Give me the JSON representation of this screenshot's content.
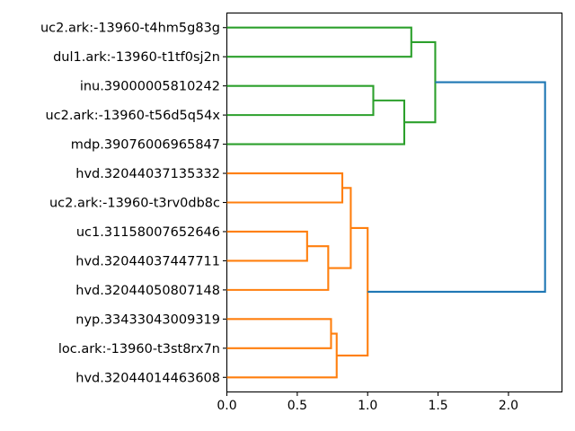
{
  "chart_data": {
    "type": "dendrogram",
    "orientation": "right",
    "title": "",
    "xlabel": "",
    "ylabel": "",
    "grid": false,
    "legend": null,
    "leaves": [
      "uc2.ark:-13960-t4hm5g83g",
      "dul1.ark:-13960-t1tf0sj2n",
      "inu.39000005810242",
      "uc2.ark:-13960-t56d5q54x",
      "mdp.39076006965847",
      "hvd.32044037135332",
      "uc2.ark:-13960-t3rv0db8c",
      "uc1.31158007652646",
      "hvd.32044037447711",
      "hvd.32044050807148",
      "nyp.33433043009319",
      "loc.ark:-13960-t3st8rx7n",
      "hvd.32044014463608"
    ],
    "merges": [
      {
        "id": "m-0",
        "children": [
          "leaf-0",
          "leaf-1"
        ],
        "distance": 1.31,
        "color": "green"
      },
      {
        "id": "m-1",
        "children": [
          "leaf-2",
          "leaf-3"
        ],
        "distance": 1.04,
        "color": "green"
      },
      {
        "id": "m-2",
        "children": [
          "m-1",
          "leaf-4"
        ],
        "distance": 1.26,
        "color": "green"
      },
      {
        "id": "m-3",
        "children": [
          "m-0",
          "m-2"
        ],
        "distance": 1.48,
        "color": "green"
      },
      {
        "id": "m-4",
        "children": [
          "leaf-5",
          "leaf-6"
        ],
        "distance": 0.82,
        "color": "orange"
      },
      {
        "id": "m-5",
        "children": [
          "leaf-7",
          "leaf-8"
        ],
        "distance": 0.57,
        "color": "orange"
      },
      {
        "id": "m-6",
        "children": [
          "m-5",
          "leaf-9"
        ],
        "distance": 0.72,
        "color": "orange"
      },
      {
        "id": "m-7",
        "children": [
          "m-4",
          "m-6"
        ],
        "distance": 0.88,
        "color": "orange"
      },
      {
        "id": "m-8",
        "children": [
          "leaf-10",
          "leaf-11"
        ],
        "distance": 0.74,
        "color": "orange"
      },
      {
        "id": "m-9",
        "children": [
          "m-8",
          "leaf-12"
        ],
        "distance": 0.78,
        "color": "orange"
      },
      {
        "id": "m-10",
        "children": [
          "m-7",
          "m-9"
        ],
        "distance": 1.0,
        "color": "orange"
      },
      {
        "id": "m-11",
        "children": [
          "m-3",
          "m-10"
        ],
        "distance": 2.26,
        "color": "blue"
      }
    ],
    "colors": {
      "green": "#2ca02c",
      "orange": "#ff7f0e",
      "blue": "#1f77b4",
      "spine": "#000000"
    },
    "x_axis": {
      "tick_labels": [
        "0.0",
        "0.5",
        "1.0",
        "1.5",
        "2.0"
      ],
      "tick_values": [
        0,
        0.5,
        1.0,
        1.5,
        2.0
      ],
      "xlim": [
        0,
        2.38
      ]
    }
  }
}
